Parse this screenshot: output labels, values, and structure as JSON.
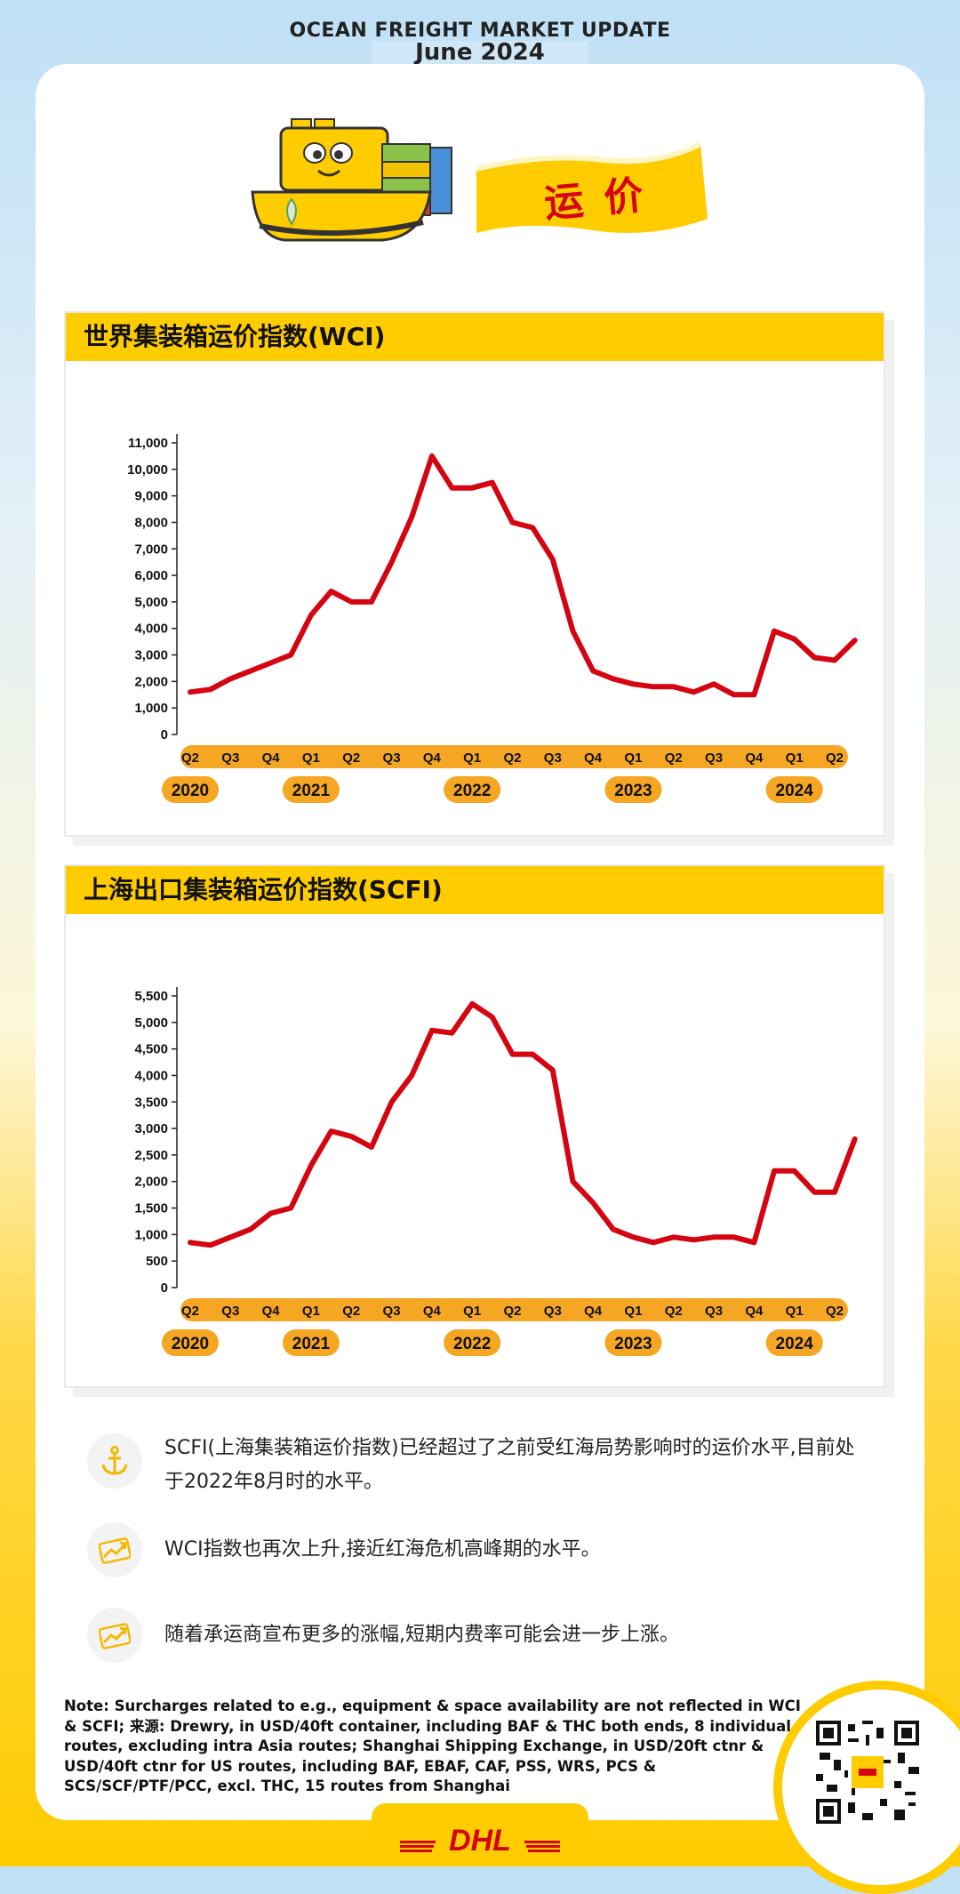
{
  "header": {
    "title": "OCEAN FREIGHT MARKET UPDATE",
    "subtitle": "June 2024"
  },
  "banner": {
    "text": "运 价"
  },
  "colors": {
    "brand_yellow": "#ffcc00",
    "line_red": "#d40511",
    "axis_orange": "#f5a623"
  },
  "charts": [
    {
      "title": "世界集装箱运价指数(WCI)",
      "ytick_labels": [
        "0",
        "1,000",
        "2,000",
        "3,000",
        "4,000",
        "5,000",
        "6,000",
        "7,000",
        "8,000",
        "9,000",
        "10,000",
        "11,000"
      ],
      "quarter_labels": [
        "Q2",
        "Q3",
        "Q4",
        "Q1",
        "Q2",
        "Q3",
        "Q4",
        "Q1",
        "Q2",
        "Q3",
        "Q4",
        "Q1",
        "Q2",
        "Q3",
        "Q4",
        "Q1",
        "Q2"
      ],
      "year_labels": [
        "2020",
        "2021",
        "2022",
        "2023",
        "2024"
      ]
    },
    {
      "title": "上海出口集装箱运价指数(SCFI)",
      "ytick_labels": [
        "0",
        "500",
        "1,000",
        "1,500",
        "2,000",
        "2,500",
        "3,000",
        "3,500",
        "4,000",
        "4,500",
        "5,000",
        "5,500"
      ],
      "quarter_labels": [
        "Q2",
        "Q3",
        "Q4",
        "Q1",
        "Q2",
        "Q3",
        "Q4",
        "Q1",
        "Q2",
        "Q3",
        "Q4",
        "Q1",
        "Q2",
        "Q3",
        "Q4",
        "Q1",
        "Q2"
      ],
      "year_labels": [
        "2020",
        "2021",
        "2022",
        "2023",
        "2024"
      ]
    }
  ],
  "chart_data": [
    {
      "type": "line",
      "title": "世界集装箱运价指数(WCI)",
      "xlabel": "",
      "ylabel": "",
      "ylim": [
        0,
        11000
      ],
      "x": [
        0,
        0.5,
        1,
        1.5,
        2,
        2.5,
        3,
        3.5,
        4,
        4.5,
        5,
        5.5,
        6,
        6.5,
        7,
        7.5,
        8,
        8.5,
        9,
        9.5,
        10,
        10.5,
        11,
        11.5,
        12,
        12.5,
        13,
        13.5,
        14,
        14.5,
        15,
        15.5,
        16,
        16.5
      ],
      "series": [
        {
          "values": [
            1600,
            1700,
            2100,
            2400,
            2700,
            3000,
            4500,
            5400,
            5000,
            5000,
            6500,
            8200,
            10500,
            9300,
            9300,
            9500,
            8000,
            7800,
            6600,
            3900,
            2400,
            2100,
            1900,
            1800,
            1800,
            1600,
            1900,
            1500,
            1500,
            3900,
            3600,
            2900,
            2800,
            3550
          ]
        }
      ]
    },
    {
      "type": "line",
      "title": "上海出口集装箱运价指数(SCFI)",
      "xlabel": "",
      "ylabel": "",
      "ylim": [
        0,
        5500
      ],
      "x": [
        0,
        0.5,
        1,
        1.5,
        2,
        2.5,
        3,
        3.5,
        4,
        4.5,
        5,
        5.5,
        6,
        6.5,
        7,
        7.5,
        8,
        8.5,
        9,
        9.5,
        10,
        10.5,
        11,
        11.5,
        12,
        12.5,
        13,
        13.5,
        14,
        14.5,
        15,
        15.5,
        16,
        16.5
      ],
      "series": [
        {
          "values": [
            850,
            800,
            950,
            1100,
            1400,
            1500,
            2300,
            2950,
            2850,
            2650,
            3500,
            4000,
            4850,
            4800,
            5350,
            5100,
            4400,
            4400,
            4100,
            2000,
            1600,
            1100,
            950,
            850,
            950,
            900,
            950,
            950,
            850,
            2200,
            2200,
            1800,
            1800,
            2800
          ]
        }
      ]
    }
  ],
  "bullets": [
    {
      "icon": "anchor-icon",
      "text": "SCFI(上海集装箱运价指数)已经超过了之前受红海局势影响时的运价水平,目前处于2022年8月时的水平。"
    },
    {
      "icon": "trend-up-icon",
      "text": "WCI指数也再次上升,接近红海危机高峰期的水平。"
    },
    {
      "icon": "trend-up-icon",
      "text": "随着承运商宣布更多的涨幅,短期内费率可能会进一步上涨。"
    }
  ],
  "note": "Note: Surcharges related to e.g., equipment & space availability are not reflected in WCI & SCFI; 来源: Drewry, in USD/40ft container, including BAF & THC both ends, 8 individual routes, excluding intra Asia routes; Shanghai Shipping Exchange, in USD/20ft ctnr & USD/40ft ctnr for US routes, including BAF, EBAF, CAF, PSS, WRS, PCS & SCS/SCF/PTF/PCC, excl. THC, 15 routes from Shanghai",
  "logo": {
    "text": "DHL"
  }
}
